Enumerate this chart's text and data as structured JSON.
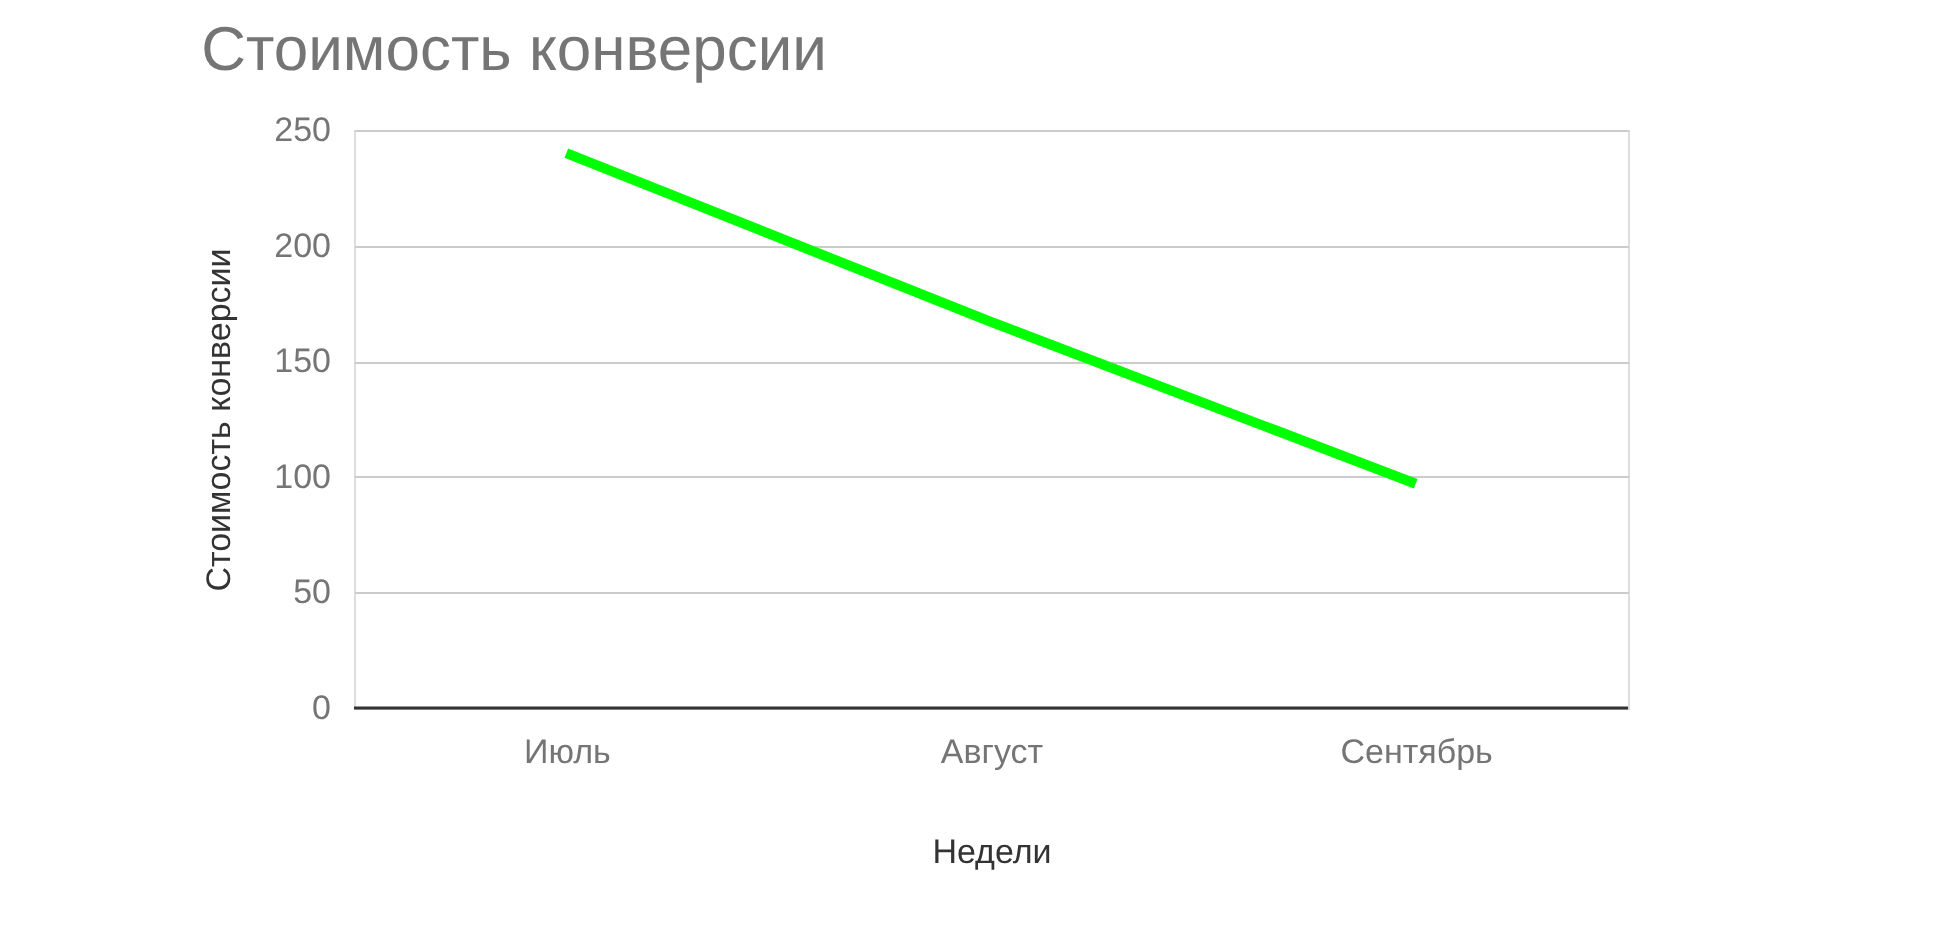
{
  "chart_data": {
    "type": "line",
    "title": "Стоимость конверсии",
    "xlabel": "Недели",
    "ylabel": "Стоимость конверсии",
    "categories": [
      "Июль",
      "Август",
      "Сентябрь"
    ],
    "series": [
      {
        "color": "#00ff00",
        "values": [
          240,
          167,
          97
        ]
      }
    ],
    "ylim": [
      0,
      250
    ],
    "yticks": [
      0,
      50,
      100,
      150,
      200,
      250
    ],
    "grid": "y",
    "marker": "none",
    "line_style": "solid"
  }
}
